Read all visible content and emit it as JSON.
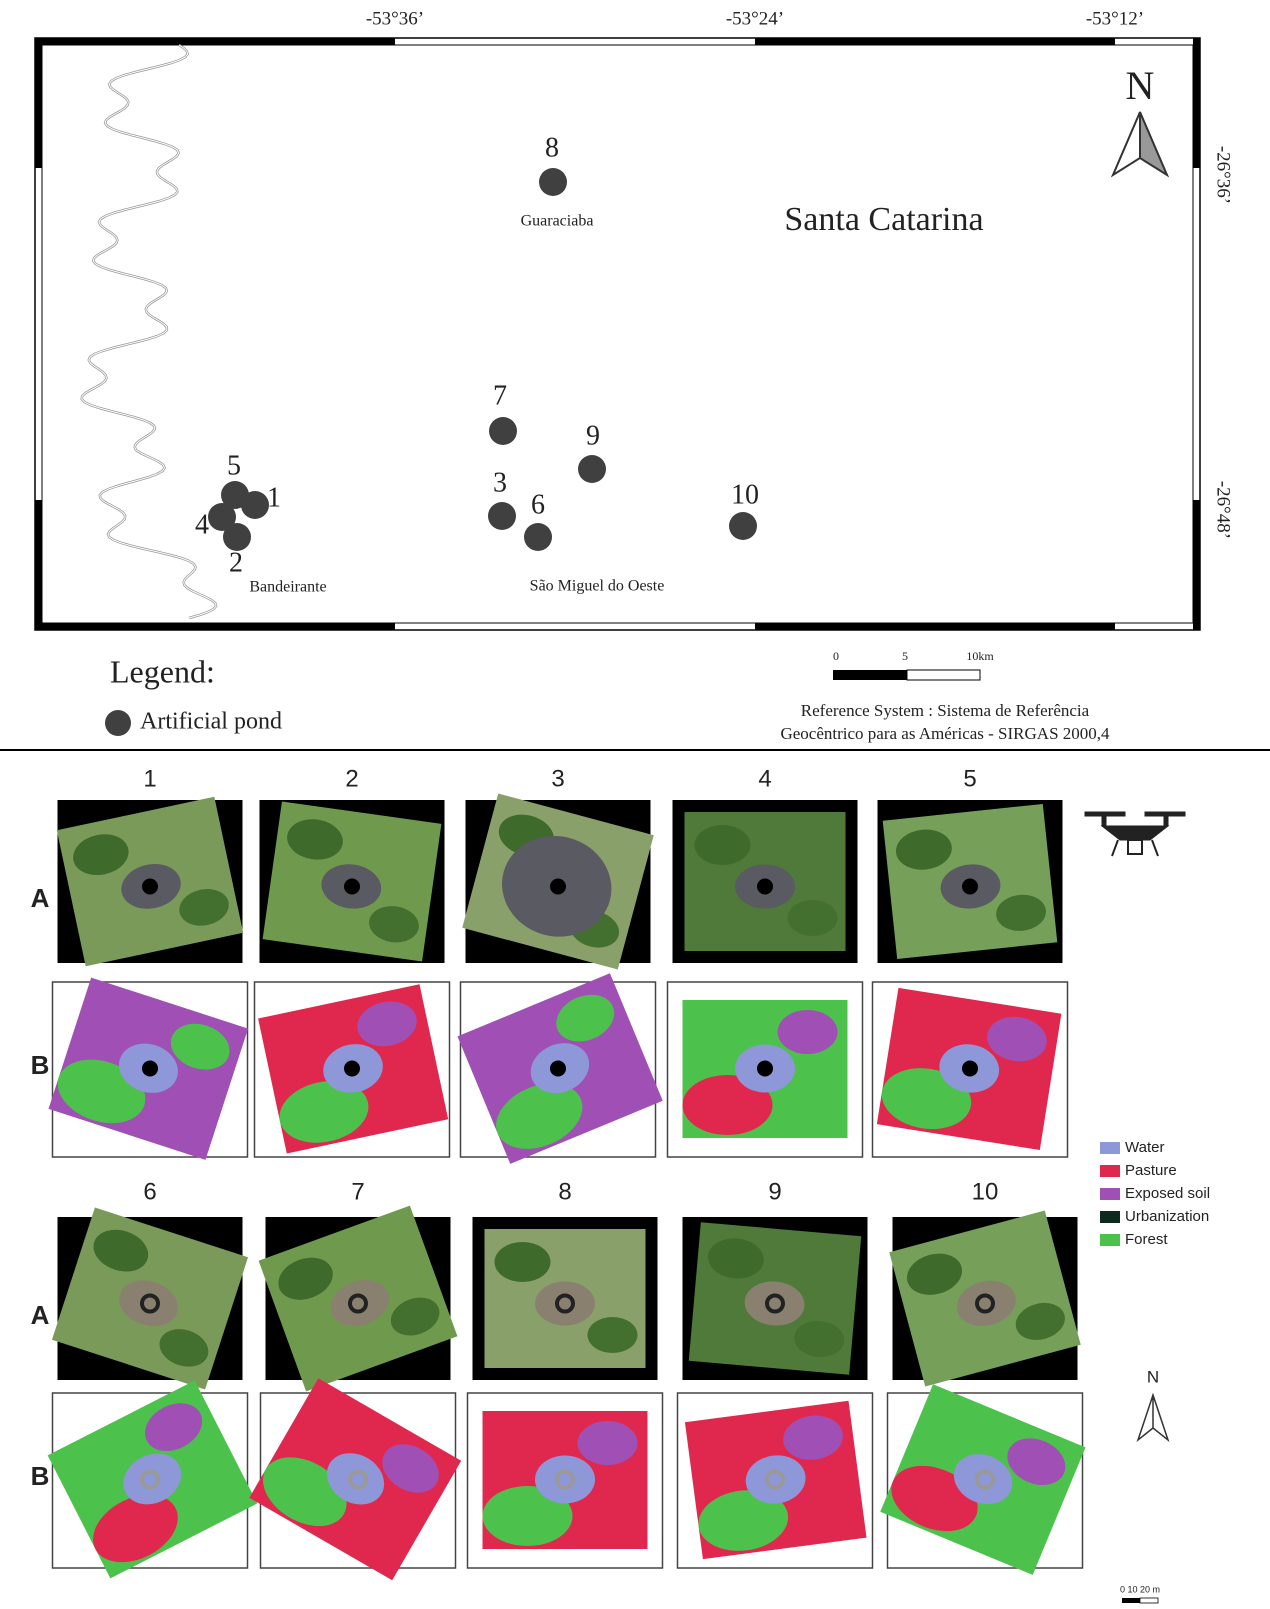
{
  "map": {
    "title": "Santa Catarina",
    "north": "N",
    "top_ticks": [
      "-53°36’",
      "-53°24’",
      "-53°12’"
    ],
    "right_ticks": [
      "-26°36’",
      "-26°48’"
    ],
    "places": [
      "Guaraciaba",
      "Bandeirante",
      "São Miguel do Oeste"
    ],
    "ponds": [
      "1",
      "2",
      "3",
      "4",
      "5",
      "6",
      "7",
      "8",
      "9",
      "10"
    ]
  },
  "legend": {
    "title": "Legend:",
    "item": "Artificial pond"
  },
  "scale_bar": {
    "labels": [
      "0",
      "5",
      "10km"
    ]
  },
  "reference": [
    "Reference System : Sistema de Referência",
    "Geocêntrico para as Américas - SIRGAS 2000,4"
  ],
  "panels": {
    "numbers": [
      "1",
      "2",
      "3",
      "4",
      "5",
      "6",
      "7",
      "8",
      "9",
      "10"
    ],
    "rows": [
      "A",
      "B"
    ],
    "north": "N",
    "scale": "0  10  20 m"
  },
  "land_cover": [
    {
      "name": "Water",
      "color": "#8e97d8"
    },
    {
      "name": "Pasture",
      "color": "#e0284f"
    },
    {
      "name": "Exposed soil",
      "color": "#a04fb5"
    },
    {
      "name": "Urbanization",
      "color": "#0e2a1e"
    },
    {
      "name": "Forest",
      "color": "#4cc24c"
    }
  ]
}
